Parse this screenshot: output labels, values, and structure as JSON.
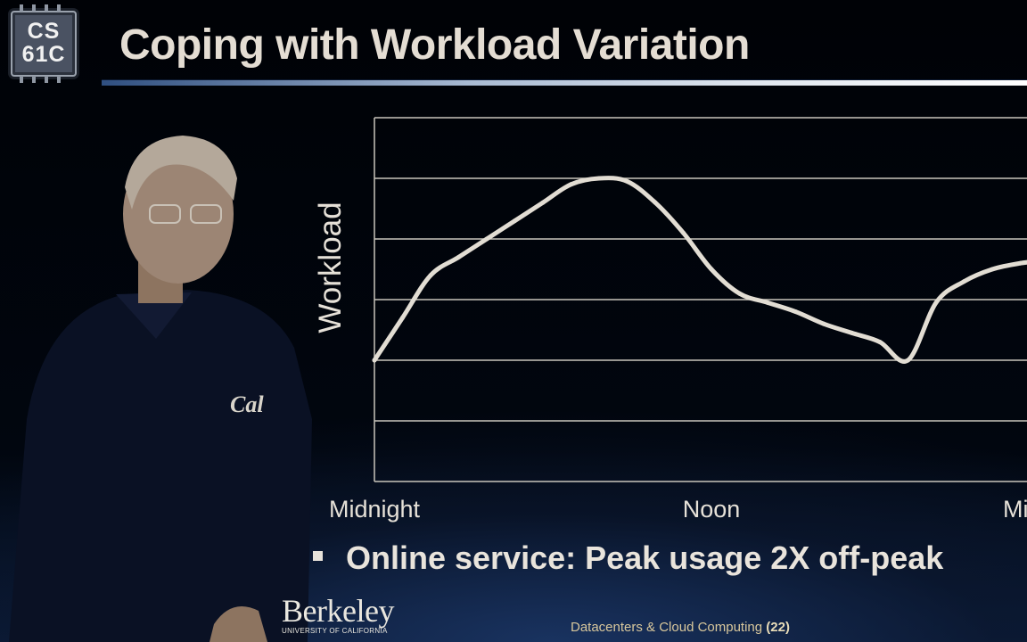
{
  "logo": {
    "line1": "CS",
    "line2": "61C"
  },
  "title": "Coping with Workload Variation",
  "chart_data": {
    "type": "line",
    "ylabel": "Workload",
    "x_tick_labels": [
      "Midnight",
      "Noon",
      "Midnight"
    ],
    "x": [
      0,
      1,
      2,
      3,
      4,
      5,
      6,
      7,
      8,
      9,
      10,
      11,
      12,
      13,
      14,
      15,
      16,
      17,
      18,
      19,
      20,
      21,
      22,
      23,
      24
    ],
    "xlim": [
      0,
      24
    ],
    "ylim": [
      0,
      6
    ],
    "grid": true,
    "series": [
      {
        "values": [
          2.0,
          2.7,
          3.4,
          3.7,
          4.0,
          4.3,
          4.6,
          4.9,
          5.0,
          4.95,
          4.6,
          4.1,
          3.5,
          3.1,
          2.95,
          2.8,
          2.6,
          2.45,
          2.3,
          2.0,
          2.95,
          3.3,
          3.5,
          3.6,
          3.65
        ]
      }
    ]
  },
  "bullet": "Online service: Peak usage 2X off-peak",
  "branding": {
    "name": "Berkeley",
    "sub": "UNIVERSITY OF CALIFORNIA"
  },
  "footer": {
    "text": "Datacenters & Cloud Computing",
    "page": "(22)"
  },
  "colors": {
    "background": "#010409",
    "title": "#e4ddd3",
    "curve": "#e2ddd3",
    "footer": "#d8c79c"
  }
}
